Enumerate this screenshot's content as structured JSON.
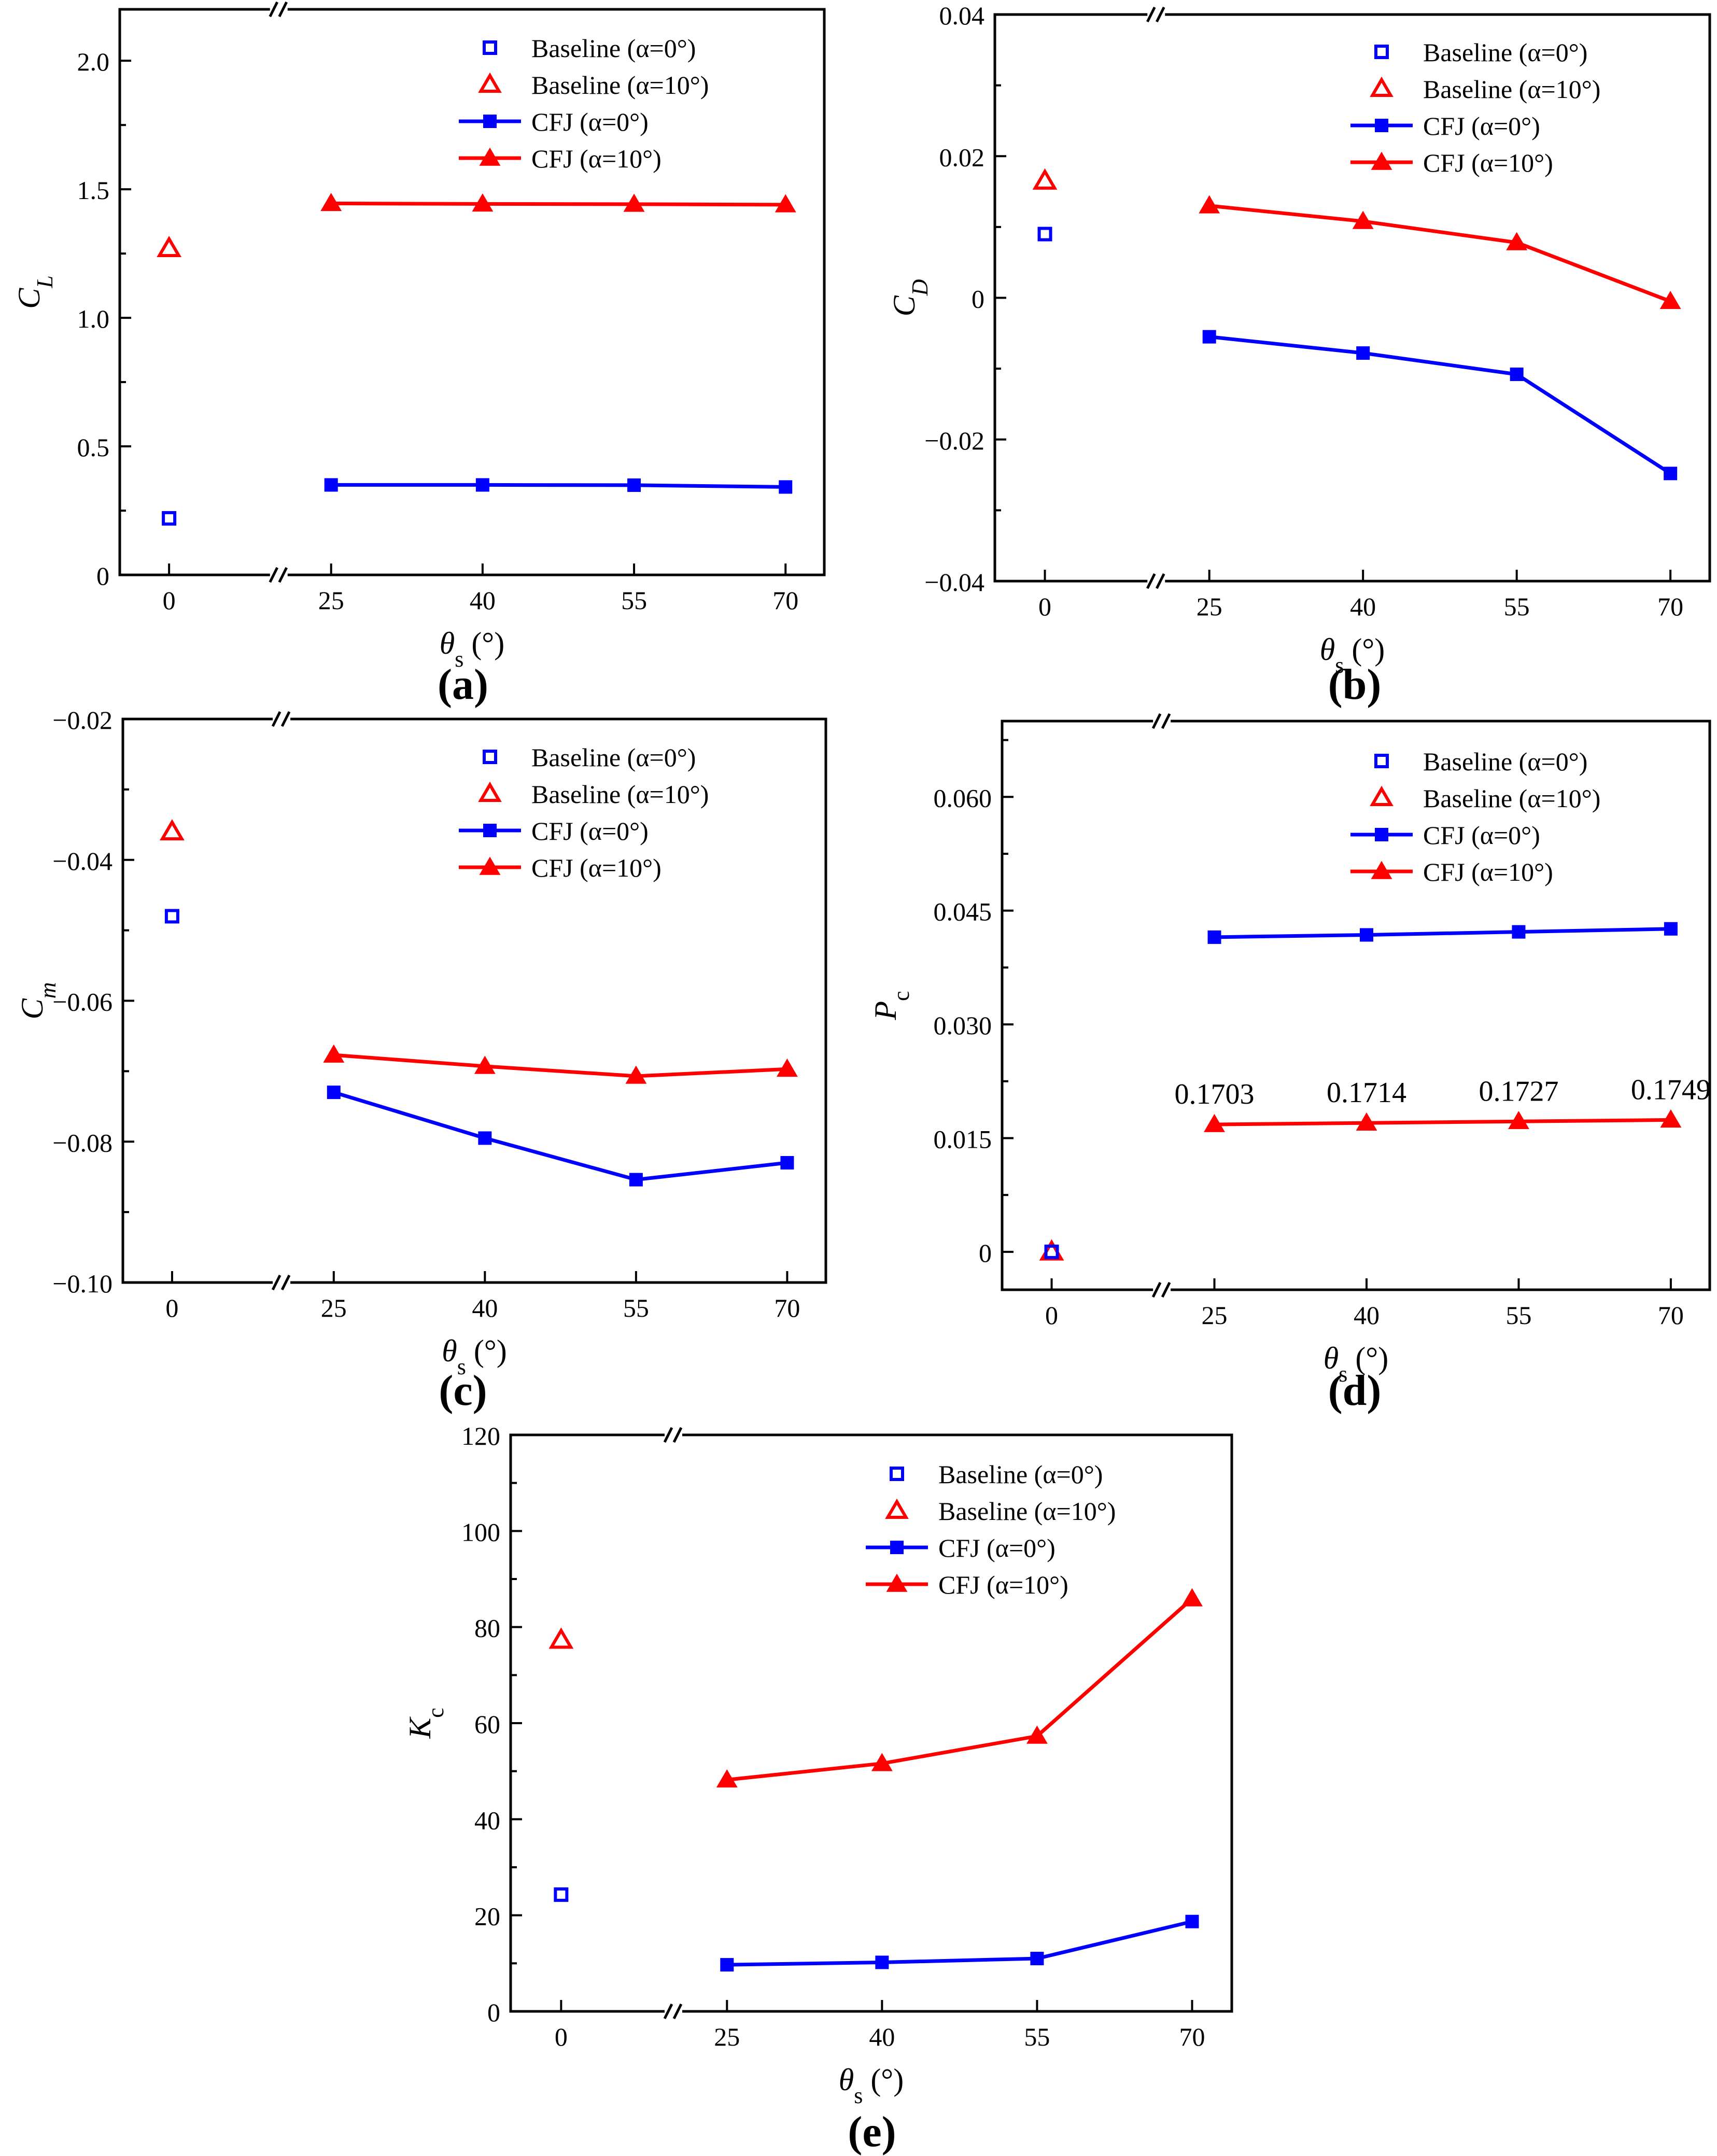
{
  "figure": {
    "xtick_labels": [
      "0",
      "25",
      "40",
      "55",
      "70"
    ],
    "legend_labels": {
      "baseline0": "Baseline (α=0°)",
      "baseline10": "Baseline (α=10°)",
      "cfj0": "CFJ (α=0°)",
      "cfj10": "CFJ (α=10°)"
    },
    "xlabel": {
      "symbol": "θ",
      "subscript": "s",
      "unit": " (°)"
    },
    "colors": {
      "blue": "#0000ff",
      "red": "#ff0000",
      "axis": "#000000"
    }
  },
  "chart_data": [
    {
      "id": "a",
      "type": "line",
      "panel_label": "(a)",
      "ylabel": {
        "symbol": "C",
        "subscript": "L",
        "sub_italic": true
      },
      "ylim": [
        0,
        2.2
      ],
      "yticks": [
        0,
        0.5,
        1.0,
        1.5,
        2.0
      ],
      "ytick_labels": [
        "0",
        "0.5",
        "1.0",
        "1.5",
        "2.0"
      ],
      "baseline": [
        {
          "name": "Baseline (α=0°)",
          "x": 0,
          "y": 0.22
        },
        {
          "name": "Baseline (α=10°)",
          "x": 0,
          "y": 1.27
        }
      ],
      "categories": [
        25,
        40,
        55,
        70
      ],
      "series": [
        {
          "name": "CFJ (α=0°)",
          "values": [
            0.35,
            0.35,
            0.349,
            0.342
          ]
        },
        {
          "name": "CFJ (α=10°)",
          "values": [
            1.445,
            1.443,
            1.442,
            1.44
          ]
        }
      ],
      "annotations": []
    },
    {
      "id": "b",
      "type": "line",
      "panel_label": "(b)",
      "ylabel": {
        "symbol": "C",
        "subscript": "D",
        "sub_italic": true
      },
      "ylim": [
        -0.04,
        0.04
      ],
      "yticks": [
        -0.04,
        -0.02,
        0,
        0.02,
        0.04
      ],
      "ytick_labels": [
        "−0.04",
        "−0.02",
        "0",
        "0.02",
        "0.04"
      ],
      "baseline": [
        {
          "name": "Baseline (α=0°)",
          "x": 0,
          "y": 0.009
        },
        {
          "name": "Baseline (α=10°)",
          "x": 0,
          "y": 0.0165
        }
      ],
      "categories": [
        25,
        40,
        55,
        70
      ],
      "series": [
        {
          "name": "CFJ (α=0°)",
          "values": [
            -0.0055,
            -0.0078,
            -0.0108,
            -0.0248
          ]
        },
        {
          "name": "CFJ (α=10°)",
          "values": [
            0.013,
            0.0108,
            0.0078,
            -0.0005
          ]
        }
      ],
      "annotations": []
    },
    {
      "id": "c",
      "type": "line",
      "panel_label": "(c)",
      "ylabel": {
        "symbol": "C",
        "subscript": "m",
        "sub_italic": true
      },
      "ylim": [
        -0.1,
        -0.02
      ],
      "yticks": [
        -0.1,
        -0.08,
        -0.06,
        -0.04,
        -0.02
      ],
      "ytick_labels": [
        "−0.10",
        "−0.08",
        "−0.06",
        "−0.04",
        "−0.02"
      ],
      "baseline": [
        {
          "name": "Baseline (α=0°)",
          "x": 0,
          "y": -0.048
        },
        {
          "name": "Baseline (α=10°)",
          "x": 0,
          "y": -0.036
        }
      ],
      "categories": [
        25,
        40,
        55,
        70
      ],
      "series": [
        {
          "name": "CFJ (α=0°)",
          "values": [
            -0.073,
            -0.0795,
            -0.0854,
            -0.083
          ]
        },
        {
          "name": "CFJ (α=10°)",
          "values": [
            -0.0677,
            -0.0693,
            -0.0707,
            -0.0697
          ]
        }
      ],
      "annotations": []
    },
    {
      "id": "d",
      "type": "line",
      "panel_label": "(d)",
      "ylabel": {
        "symbol": "P",
        "subscript": "c",
        "sub_italic": false
      },
      "ylim": [
        -0.005,
        0.07
      ],
      "yticks": [
        0,
        0.015,
        0.03,
        0.045,
        0.06
      ],
      "ytick_labels": [
        "0",
        "0.015",
        "0.030",
        "0.045",
        "0.060"
      ],
      "baseline": [
        {
          "name": "Baseline (α=0°)",
          "x": 0,
          "y": 0
        },
        {
          "name": "Baseline (α=10°)",
          "x": 0,
          "y": 0
        }
      ],
      "categories": [
        25,
        40,
        55,
        70
      ],
      "series": [
        {
          "name": "CFJ (α=0°)",
          "values": [
            0.0415,
            0.0418,
            0.0422,
            0.0426
          ]
        },
        {
          "name": "CFJ (α=10°)",
          "values": [
            0.0168,
            0.017,
            0.0172,
            0.0174
          ]
        }
      ],
      "annotations": [
        {
          "x": 25,
          "text": "0.1703"
        },
        {
          "x": 40,
          "text": "0.1714"
        },
        {
          "x": 55,
          "text": "0.1727"
        },
        {
          "x": 70,
          "text": "0.1749"
        }
      ]
    },
    {
      "id": "e",
      "type": "line",
      "panel_label": "(e)",
      "ylabel": {
        "symbol": "K",
        "subscript": "c",
        "sub_italic": false
      },
      "ylim": [
        0,
        120
      ],
      "yticks": [
        0,
        20,
        40,
        60,
        80,
        100,
        120
      ],
      "ytick_labels": [
        "0",
        "20",
        "40",
        "60",
        "80",
        "100",
        "120"
      ],
      "baseline": [
        {
          "name": "Baseline (α=0°)",
          "x": 0,
          "y": 24.3
        },
        {
          "name": "Baseline (α=10°)",
          "x": 0,
          "y": 77.3
        }
      ],
      "categories": [
        25,
        40,
        55,
        70
      ],
      "series": [
        {
          "name": "CFJ (α=0°)",
          "values": [
            9.7,
            10.2,
            11.0,
            18.7
          ]
        },
        {
          "name": "CFJ (α=10°)",
          "values": [
            48.2,
            51.6,
            57.3,
            85.9
          ]
        }
      ],
      "annotations": []
    }
  ]
}
